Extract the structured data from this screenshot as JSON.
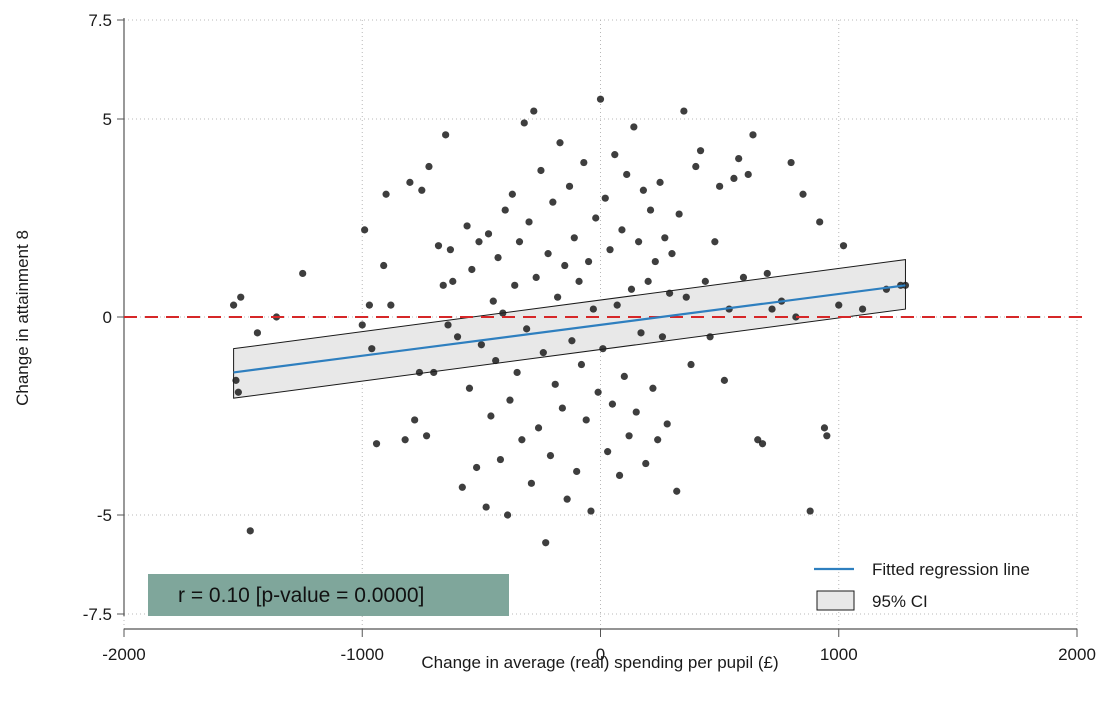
{
  "chart_data": {
    "type": "scatter",
    "xlabel": "Change in average (real) spending per pupil (£)",
    "ylabel": "Change in attainment 8",
    "xlim": [
      -2000,
      2000
    ],
    "ylim": [
      -7.5,
      7.5
    ],
    "x_ticks": [
      -2000,
      -1000,
      0,
      1000,
      2000
    ],
    "x_tick_labels": [
      "-2000",
      "-1000",
      "0",
      "1000",
      "2000"
    ],
    "y_ticks": [
      -7.5,
      -5,
      0,
      5,
      7.5
    ],
    "y_tick_labels": [
      "-7.5",
      "-5",
      "0",
      "5",
      "7.5"
    ],
    "grid": true,
    "reference_line": {
      "y": 0,
      "color": "#d62728",
      "style": "dashed"
    },
    "regression": {
      "label": "Fitted regression line",
      "color": "#2e7fbf",
      "x": [
        -1540,
        1280
      ],
      "y": [
        -1.4,
        0.8
      ],
      "ci_label": "95% CI",
      "ci_upper": [
        -0.8,
        1.45
      ],
      "ci_lower": [
        -2.05,
        0.2
      ],
      "ci_color": "#e8e8e8"
    },
    "legend_position": "bottom-right",
    "annotation": {
      "text": "r =   0.10 [p-value = 0.0000]",
      "background": "#7fa69b"
    },
    "point_color": "#1c1c1c",
    "points": [
      [
        -1540,
        0.3
      ],
      [
        -1510,
        0.5
      ],
      [
        -1530,
        -1.6
      ],
      [
        -1520,
        -1.9
      ],
      [
        -1470,
        -5.4
      ],
      [
        -1440,
        -0.4
      ],
      [
        -1360,
        0.0
      ],
      [
        -1250,
        1.1
      ],
      [
        -1000,
        -0.2
      ],
      [
        -990,
        2.2
      ],
      [
        -970,
        0.3
      ],
      [
        -960,
        -0.8
      ],
      [
        -940,
        -3.2
      ],
      [
        -910,
        1.3
      ],
      [
        -900,
        3.1
      ],
      [
        -880,
        0.3
      ],
      [
        -820,
        -3.1
      ],
      [
        -800,
        3.4
      ],
      [
        -780,
        -2.6
      ],
      [
        -760,
        -1.4
      ],
      [
        -750,
        3.2
      ],
      [
        -730,
        -3.0
      ],
      [
        -720,
        3.8
      ],
      [
        -700,
        -1.4
      ],
      [
        -680,
        1.8
      ],
      [
        -660,
        0.8
      ],
      [
        -650,
        4.6
      ],
      [
        -640,
        -0.2
      ],
      [
        -630,
        1.7
      ],
      [
        -620,
        0.9
      ],
      [
        -600,
        -0.5
      ],
      [
        -580,
        -4.3
      ],
      [
        -560,
        2.3
      ],
      [
        -550,
        -1.8
      ],
      [
        -540,
        1.2
      ],
      [
        -520,
        -3.8
      ],
      [
        -510,
        1.9
      ],
      [
        -500,
        -0.7
      ],
      [
        -480,
        -4.8
      ],
      [
        -470,
        2.1
      ],
      [
        -460,
        -2.5
      ],
      [
        -450,
        0.4
      ],
      [
        -440,
        -1.1
      ],
      [
        -430,
        1.5
      ],
      [
        -420,
        -3.6
      ],
      [
        -410,
        0.1
      ],
      [
        -400,
        2.7
      ],
      [
        -390,
        -5.0
      ],
      [
        -380,
        -2.1
      ],
      [
        -370,
        3.1
      ],
      [
        -360,
        0.8
      ],
      [
        -350,
        -1.4
      ],
      [
        -340,
        1.9
      ],
      [
        -330,
        -3.1
      ],
      [
        -320,
        4.9
      ],
      [
        -310,
        -0.3
      ],
      [
        -300,
        2.4
      ],
      [
        -290,
        -4.2
      ],
      [
        -280,
        5.2
      ],
      [
        -270,
        1.0
      ],
      [
        -260,
        -2.8
      ],
      [
        -250,
        3.7
      ],
      [
        -240,
        -0.9
      ],
      [
        -230,
        -5.7
      ],
      [
        -220,
        1.6
      ],
      [
        -210,
        -3.5
      ],
      [
        -200,
        2.9
      ],
      [
        -190,
        -1.7
      ],
      [
        -180,
        0.5
      ],
      [
        -170,
        4.4
      ],
      [
        -160,
        -2.3
      ],
      [
        -150,
        1.3
      ],
      [
        -140,
        -4.6
      ],
      [
        -130,
        3.3
      ],
      [
        -120,
        -0.6
      ],
      [
        -110,
        2.0
      ],
      [
        -100,
        -3.9
      ],
      [
        -90,
        0.9
      ],
      [
        -80,
        -1.2
      ],
      [
        -70,
        3.9
      ],
      [
        -60,
        -2.6
      ],
      [
        -50,
        1.4
      ],
      [
        -40,
        -4.9
      ],
      [
        -30,
        0.2
      ],
      [
        -20,
        2.5
      ],
      [
        -10,
        -1.9
      ],
      [
        0,
        5.5
      ],
      [
        10,
        -0.8
      ],
      [
        20,
        3.0
      ],
      [
        30,
        -3.4
      ],
      [
        40,
        1.7
      ],
      [
        50,
        -2.2
      ],
      [
        60,
        4.1
      ],
      [
        70,
        0.3
      ],
      [
        80,
        -4.0
      ],
      [
        90,
        2.2
      ],
      [
        100,
        -1.5
      ],
      [
        110,
        3.6
      ],
      [
        120,
        -3.0
      ],
      [
        130,
        0.7
      ],
      [
        140,
        4.8
      ],
      [
        150,
        -2.4
      ],
      [
        160,
        1.9
      ],
      [
        170,
        -0.4
      ],
      [
        180,
        3.2
      ],
      [
        190,
        -3.7
      ],
      [
        200,
        0.9
      ],
      [
        210,
        2.7
      ],
      [
        220,
        -1.8
      ],
      [
        230,
        1.4
      ],
      [
        240,
        -3.1
      ],
      [
        250,
        3.4
      ],
      [
        260,
        -0.5
      ],
      [
        270,
        2.0
      ],
      [
        280,
        -2.7
      ],
      [
        290,
        0.6
      ],
      [
        300,
        1.6
      ],
      [
        320,
        -4.4
      ],
      [
        330,
        2.6
      ],
      [
        350,
        5.2
      ],
      [
        360,
        0.5
      ],
      [
        380,
        -1.2
      ],
      [
        400,
        3.8
      ],
      [
        420,
        4.2
      ],
      [
        440,
        0.9
      ],
      [
        460,
        -0.5
      ],
      [
        480,
        1.9
      ],
      [
        500,
        3.3
      ],
      [
        520,
        -1.6
      ],
      [
        540,
        0.2
      ],
      [
        560,
        3.5
      ],
      [
        580,
        4.0
      ],
      [
        600,
        1.0
      ],
      [
        620,
        3.6
      ],
      [
        640,
        4.6
      ],
      [
        660,
        -3.1
      ],
      [
        680,
        -3.2
      ],
      [
        700,
        1.1
      ],
      [
        720,
        0.2
      ],
      [
        760,
        0.4
      ],
      [
        800,
        3.9
      ],
      [
        820,
        0.0
      ],
      [
        850,
        3.1
      ],
      [
        880,
        -4.9
      ],
      [
        920,
        2.4
      ],
      [
        940,
        -2.8
      ],
      [
        950,
        -3.0
      ],
      [
        1000,
        0.3
      ],
      [
        1020,
        1.8
      ],
      [
        1100,
        0.2
      ],
      [
        1200,
        0.7
      ],
      [
        1260,
        0.8
      ],
      [
        1280,
        0.8
      ]
    ]
  }
}
